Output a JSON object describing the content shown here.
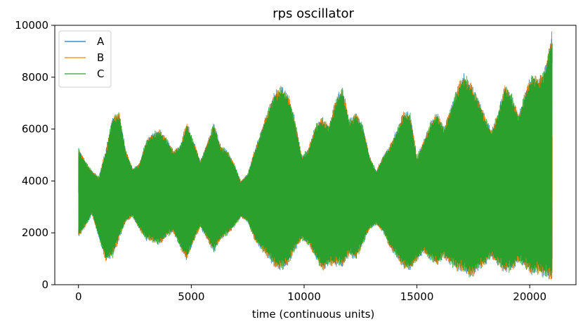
{
  "chart_data": {
    "type": "line",
    "title": "rps oscillator",
    "xlabel": "time (continuous units)",
    "ylabel": "",
    "xlim": [
      -1050,
      22050
    ],
    "ylim": [
      0,
      10000
    ],
    "x_ticks": [
      0,
      5000,
      10000,
      15000,
      20000
    ],
    "x_tick_labels": [
      "0",
      "5000",
      "10000",
      "15000",
      "20000"
    ],
    "y_ticks": [
      0,
      2000,
      4000,
      6000,
      8000,
      10000
    ],
    "y_tick_labels": [
      "0",
      "2000",
      "4000",
      "6000",
      "8000",
      "10000"
    ],
    "grid": false,
    "legend_position": "upper-left",
    "series": [
      {
        "name": "A",
        "color": "#1f77b4"
      },
      {
        "name": "B",
        "color": "#ff7f0e"
      },
      {
        "name": "C",
        "color": "#2ca02c"
      }
    ],
    "envelope": {
      "x": [
        0,
        300,
        600,
        900,
        1200,
        1500,
        1800,
        2100,
        2400,
        2700,
        3000,
        3300,
        3600,
        3900,
        4200,
        4500,
        4800,
        5100,
        5400,
        5700,
        6000,
        6300,
        6600,
        6900,
        7200,
        7500,
        7800,
        8100,
        8400,
        8700,
        9000,
        9300,
        9600,
        9900,
        10200,
        10500,
        10800,
        11100,
        11400,
        11700,
        12000,
        12300,
        12600,
        12900,
        13200,
        13500,
        13800,
        14100,
        14400,
        14700,
        15000,
        15300,
        15600,
        15900,
        16200,
        16500,
        16800,
        17100,
        17400,
        17700,
        18000,
        18300,
        18600,
        18900,
        19200,
        19500,
        19800,
        20100,
        20400,
        20700,
        21000
      ],
      "upper": [
        5300,
        4800,
        4400,
        4200,
        5200,
        6500,
        6700,
        5200,
        4500,
        4700,
        5600,
        5900,
        6000,
        5700,
        5200,
        5400,
        6300,
        5600,
        4800,
        5500,
        6300,
        5400,
        5200,
        4700,
        4000,
        4300,
        5200,
        6000,
        6800,
        7500,
        7700,
        7400,
        6400,
        5000,
        5300,
        6200,
        6500,
        6200,
        7200,
        7700,
        6400,
        6700,
        6200,
        5000,
        4400,
        5000,
        5400,
        6000,
        6700,
        6700,
        5000,
        5600,
        6300,
        6700,
        6100,
        6900,
        7700,
        8200,
        7800,
        7300,
        6600,
        6000,
        6700,
        7800,
        7400,
        6600,
        7500,
        8200,
        8000,
        8500,
        9900
      ],
      "lower": [
        1800,
        2200,
        2700,
        1800,
        900,
        1000,
        1700,
        2400,
        2600,
        2100,
        1700,
        1600,
        1500,
        1800,
        2000,
        1400,
        900,
        1600,
        2200,
        1700,
        1200,
        1700,
        1900,
        2200,
        2600,
        2400,
        1700,
        1300,
        1000,
        600,
        500,
        700,
        1300,
        1700,
        1500,
        1000,
        500,
        700,
        700,
        600,
        1100,
        900,
        1500,
        2100,
        2300,
        2000,
        1400,
        1000,
        600,
        500,
        900,
        1200,
        900,
        700,
        1000,
        700,
        500,
        400,
        200,
        500,
        700,
        1000,
        700,
        400,
        500,
        800,
        600,
        300,
        400,
        200,
        100
      ]
    }
  }
}
